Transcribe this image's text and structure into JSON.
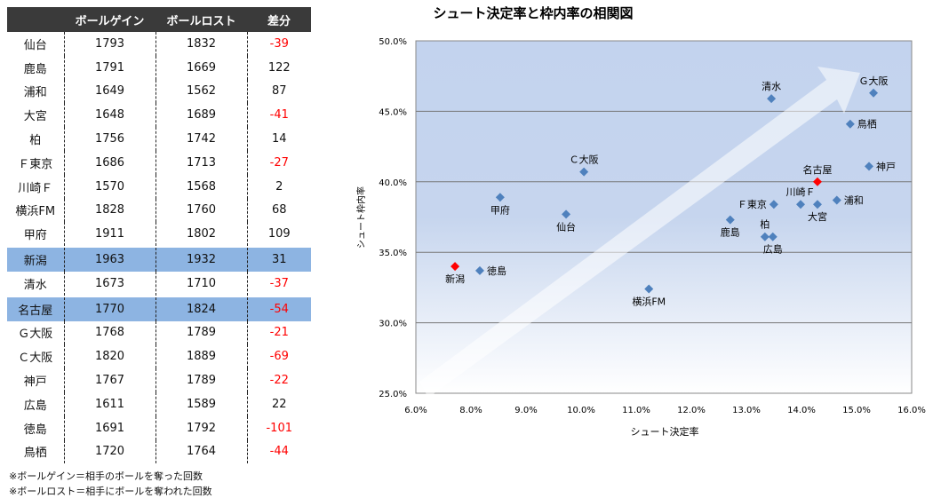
{
  "table": {
    "headers": [
      "",
      "ボールゲイン",
      "ボールロスト",
      "差分"
    ],
    "rows": [
      {
        "team": "仙台",
        "gain": "1793",
        "lost": "1832",
        "diff": "-39",
        "hl": false
      },
      {
        "team": "鹿島",
        "gain": "1791",
        "lost": "1669",
        "diff": "122",
        "hl": false
      },
      {
        "team": "浦和",
        "gain": "1649",
        "lost": "1562",
        "diff": "87",
        "hl": false
      },
      {
        "team": "大宮",
        "gain": "1648",
        "lost": "1689",
        "diff": "-41",
        "hl": false
      },
      {
        "team": "柏",
        "gain": "1756",
        "lost": "1742",
        "diff": "14",
        "hl": false
      },
      {
        "team": "Ｆ東京",
        "gain": "1686",
        "lost": "1713",
        "diff": "-27",
        "hl": false
      },
      {
        "team": "川崎Ｆ",
        "gain": "1570",
        "lost": "1568",
        "diff": "2",
        "hl": false
      },
      {
        "team": "横浜FM",
        "gain": "1828",
        "lost": "1760",
        "diff": "68",
        "hl": false
      },
      {
        "team": "甲府",
        "gain": "1911",
        "lost": "1802",
        "diff": "109",
        "hl": false
      },
      {
        "team": "新潟",
        "gain": "1963",
        "lost": "1932",
        "diff": "31",
        "hl": true
      },
      {
        "team": "清水",
        "gain": "1673",
        "lost": "1710",
        "diff": "-37",
        "hl": false
      },
      {
        "team": "名古屋",
        "gain": "1770",
        "lost": "1824",
        "diff": "-54",
        "hl": true
      },
      {
        "team": "Ｇ大阪",
        "gain": "1768",
        "lost": "1789",
        "diff": "-21",
        "hl": false
      },
      {
        "team": "Ｃ大阪",
        "gain": "1820",
        "lost": "1889",
        "diff": "-69",
        "hl": false
      },
      {
        "team": "神戸",
        "gain": "1767",
        "lost": "1789",
        "diff": "-22",
        "hl": false
      },
      {
        "team": "広島",
        "gain": "1611",
        "lost": "1589",
        "diff": "22",
        "hl": false
      },
      {
        "team": "徳島",
        "gain": "1691",
        "lost": "1792",
        "diff": "-101",
        "hl": false
      },
      {
        "team": "鳥栖",
        "gain": "1720",
        "lost": "1764",
        "diff": "-44",
        "hl": false
      }
    ],
    "notes": [
      "※ボールゲイン＝相手のボールを奪った回数",
      "※ボールロスト＝相手にボールを奪われた回数"
    ]
  },
  "chart_data": {
    "type": "scatter",
    "title": "シュート決定率と枠内率の相関図",
    "xlabel": "シュート決定率",
    "ylabel": "シュート枠内率",
    "xlim": [
      6,
      16
    ],
    "ylim": [
      25,
      50
    ],
    "xticks": [
      "6.0%",
      "8.0%",
      "9.0%",
      "10.0%",
      "11.0%",
      "12.0%",
      "13.0%",
      "14.0%",
      "15.0%",
      "16.0%"
    ],
    "xtick_values": [
      6,
      8,
      9,
      10,
      11,
      12,
      13,
      14,
      15,
      16
    ],
    "yticks": [
      "25.0%",
      "30.0%",
      "35.0%",
      "40.0%",
      "45.0%",
      "50.0%"
    ],
    "ytick_values": [
      25,
      30,
      35,
      40,
      45,
      50
    ],
    "grid": "horizontal",
    "colors": {
      "normal": "#4f81bd",
      "highlight": "#ff0000"
    },
    "points": [
      {
        "name": "清水",
        "x": 13.17,
        "y": 45.9,
        "label": "above",
        "hl": false
      },
      {
        "name": "Ｇ大阪",
        "x": 15.23,
        "y": 46.3,
        "label": "above",
        "hl": false
      },
      {
        "name": "鳥栖",
        "x": 14.76,
        "y": 44.1,
        "label": "right",
        "hl": false
      },
      {
        "name": "神戸",
        "x": 15.14,
        "y": 41.1,
        "label": "right",
        "hl": false
      },
      {
        "name": "名古屋",
        "x": 14.1,
        "y": 40.0,
        "label": "above",
        "hl": true
      },
      {
        "name": "Ｃ大阪",
        "x": 9.39,
        "y": 40.7,
        "label": "above",
        "hl": false
      },
      {
        "name": "甲府",
        "x": 7.7,
        "y": 38.9,
        "label": "below",
        "hl": false
      },
      {
        "name": "仙台",
        "x": 9.03,
        "y": 37.7,
        "label": "below",
        "hl": false
      },
      {
        "name": "Ｆ東京",
        "x": 13.22,
        "y": 38.4,
        "label": "left",
        "hl": false
      },
      {
        "name": "川崎Ｆ",
        "x": 13.76,
        "y": 38.4,
        "label": "above",
        "hl": false
      },
      {
        "name": "大宮",
        "x": 14.1,
        "y": 38.4,
        "label": "below",
        "hl": false
      },
      {
        "name": "浦和",
        "x": 14.49,
        "y": 38.7,
        "label": "right",
        "hl": false
      },
      {
        "name": "鹿島",
        "x": 12.34,
        "y": 37.3,
        "label": "below",
        "hl": false
      },
      {
        "name": "柏",
        "x": 13.04,
        "y": 36.1,
        "label": "above",
        "hl": false
      },
      {
        "name": "広島",
        "x": 13.2,
        "y": 36.1,
        "label": "below",
        "hl": false
      },
      {
        "name": "新潟",
        "x": 6.79,
        "y": 34.0,
        "label": "below",
        "hl": true
      },
      {
        "name": "徳島",
        "x": 7.29,
        "y": 33.7,
        "label": "right",
        "hl": false
      },
      {
        "name": "横浜FM",
        "x": 10.7,
        "y": 32.4,
        "label": "below",
        "hl": false
      }
    ]
  }
}
